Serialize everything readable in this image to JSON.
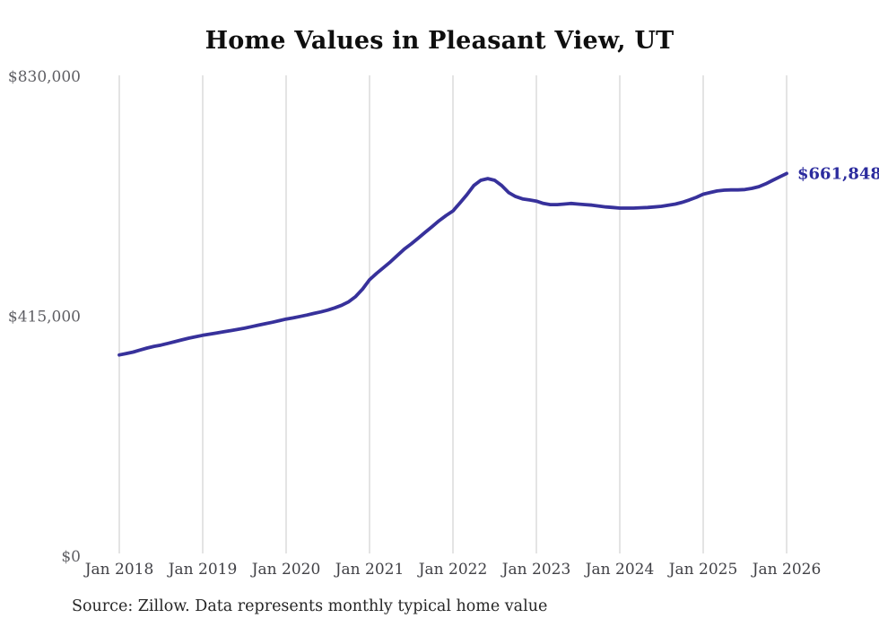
{
  "chart_data": {
    "type": "line",
    "title": "Home Values in Pleasant View, UT",
    "source_note": "Source: Zillow. Data represents monthly typical home value",
    "series_name": "Monthly typical home value",
    "interval": "monthly",
    "x_start_label": "Jan 2018",
    "x_end_label": "Jan 2026",
    "x_tick_labels": [
      "Jan 2018",
      "Jan 2019",
      "Jan 2020",
      "Jan 2021",
      "Jan 2022",
      "Jan 2023",
      "Jan 2024",
      "Jan 2025",
      "Jan 2026"
    ],
    "y_ticks": [
      {
        "label": "$830,000",
        "value": 830000
      },
      {
        "label": "$415,000",
        "value": 415000
      },
      {
        "label": "$0",
        "value": 0
      }
    ],
    "ylim": [
      0,
      830000
    ],
    "end_label": "$661,848",
    "latest_value": 661848,
    "grid": "vertical-only",
    "legend": "none",
    "colors": {
      "line": "#37319b",
      "end_label": "#2c2c9e",
      "grid": "#c9c9c9",
      "x_tick_text": "#414146",
      "y_tick_text": "#5f5f64",
      "title_text": "#0f0f0f",
      "source_text": "#262626"
    },
    "values": [
      348000,
      350500,
      353000,
      356500,
      360000,
      362800,
      365000,
      368000,
      371000,
      374000,
      377000,
      379500,
      382000,
      384000,
      386000,
      388000,
      390000,
      392000,
      394200,
      396800,
      399500,
      402000,
      404500,
      407200,
      410000,
      412000,
      414500,
      417000,
      419800,
      422500,
      425500,
      429500,
      434000,
      440000,
      449000,
      462000,
      478000,
      489000,
      499000,
      509000,
      520000,
      531000,
      540000,
      550000,
      560000,
      570000,
      580000,
      589000,
      597000,
      611000,
      625000,
      641000,
      650000,
      653000,
      650000,
      641000,
      629000,
      622000,
      618000,
      616000,
      614000,
      610000,
      608000,
      608000,
      609000,
      610000,
      609000,
      608000,
      607000,
      605500,
      604000,
      603000,
      602000,
      602000,
      602000,
      602500,
      603000,
      604000,
      605000,
      607000,
      609000,
      612000,
      616000,
      620500,
      626000,
      629000,
      631500,
      633000,
      633500,
      633500,
      634000,
      636000,
      639000,
      644000,
      650000,
      656000,
      661848
    ]
  }
}
